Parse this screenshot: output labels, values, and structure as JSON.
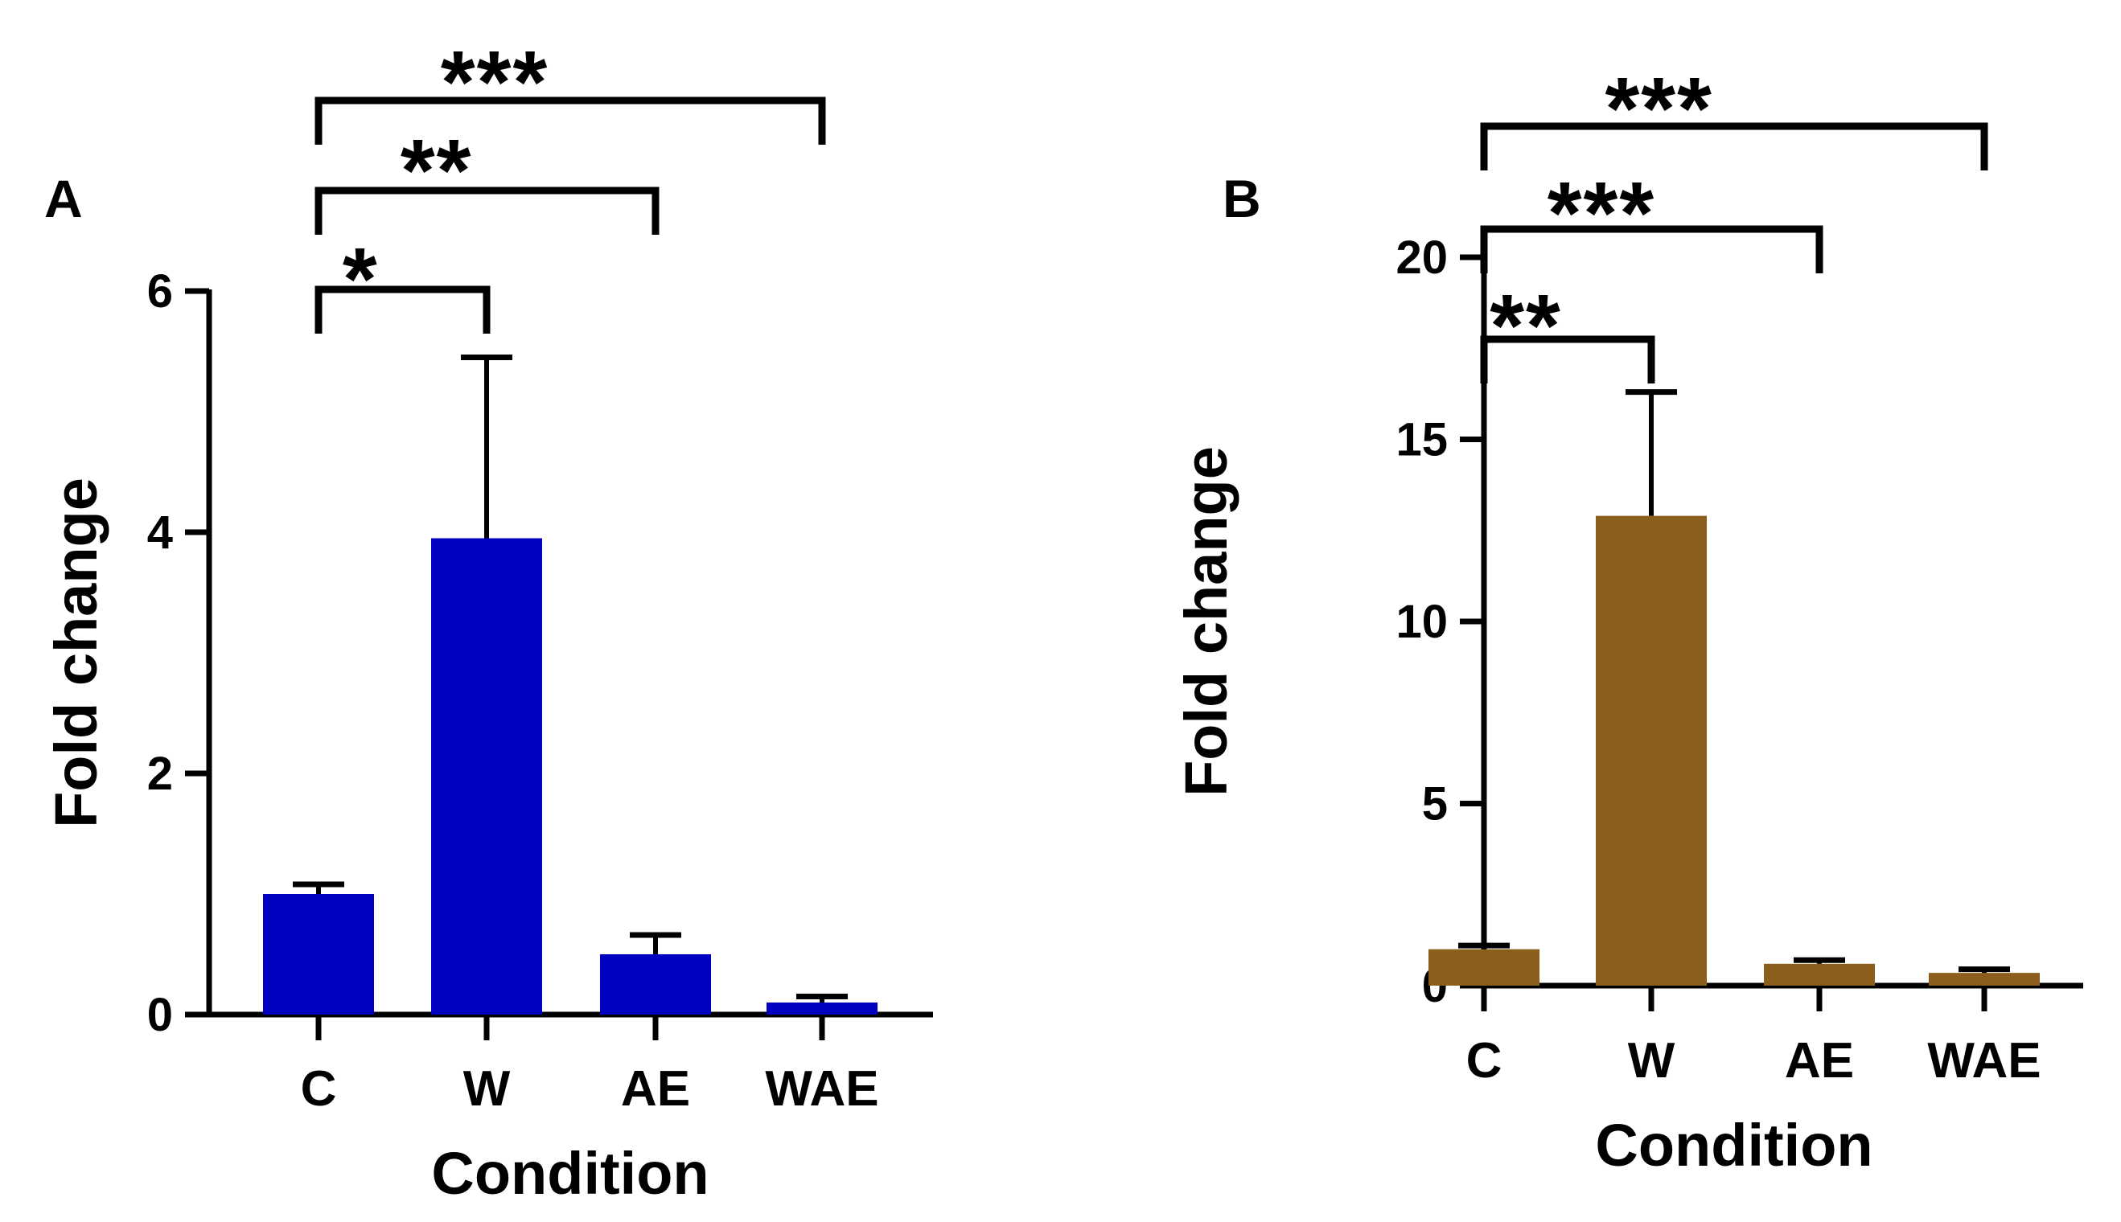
{
  "figure": {
    "panels": [
      "A",
      "B"
    ]
  },
  "chart_data": [
    {
      "type": "bar",
      "panel_label": "A",
      "categories": [
        "C",
        "W",
        "AE",
        "WAE"
      ],
      "values": [
        1.0,
        3.95,
        0.5,
        0.1
      ],
      "error_upper": [
        1.08,
        5.45,
        0.66,
        0.15
      ],
      "color": "#0000C0",
      "xlabel": "Condition",
      "ylabel": "Fold change",
      "ylim": [
        0,
        6
      ],
      "yticks": [
        "0",
        "2",
        "4",
        "6"
      ],
      "grid": false,
      "legend": "none",
      "significance": [
        {
          "from": "C",
          "to": "W",
          "label": "*"
        },
        {
          "from": "C",
          "to": "AE",
          "label": "**"
        },
        {
          "from": "C",
          "to": "WAE",
          "label": "***"
        }
      ]
    },
    {
      "type": "bar",
      "panel_label": "B",
      "categories": [
        "C",
        "W",
        "AE",
        "WAE"
      ],
      "values": [
        1.0,
        12.9,
        0.6,
        0.35
      ],
      "error_upper": [
        1.1,
        16.3,
        0.7,
        0.45
      ],
      "color": "#8B5E1E",
      "xlabel": "Condition",
      "ylabel": "Fold change",
      "ylim": [
        0,
        20
      ],
      "yticks": [
        "0",
        "5",
        "10",
        "15",
        "20"
      ],
      "grid": false,
      "legend": "none",
      "significance": [
        {
          "from": "C",
          "to": "W",
          "label": "**"
        },
        {
          "from": "C",
          "to": "AE",
          "label": "***"
        },
        {
          "from": "C",
          "to": "WAE",
          "label": "***"
        }
      ]
    }
  ]
}
